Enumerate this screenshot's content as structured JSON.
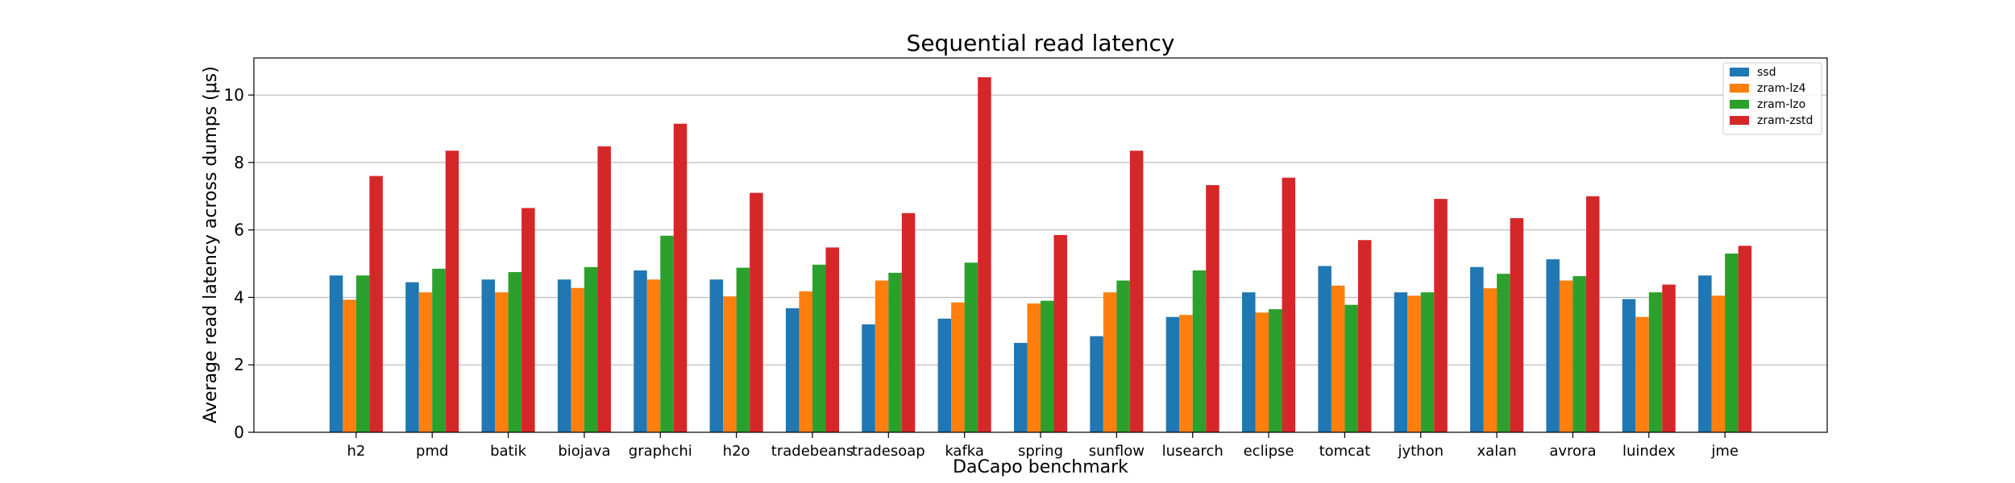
{
  "chart_data": {
    "type": "bar",
    "title": "Sequential read latency",
    "xlabel": "DaCapo benchmark",
    "ylabel": "Average read latency across dumps (μs)",
    "ylim": [
      0,
      11.1
    ],
    "yticks": [
      0,
      2,
      4,
      6,
      8,
      10
    ],
    "grid": "horizontal",
    "legend_position": "top-right",
    "categories": [
      "h2",
      "pmd",
      "batik",
      "biojava",
      "graphchi",
      "h2o",
      "tradebeans",
      "tradesoap",
      "kafka",
      "spring",
      "sunflow",
      "lusearch",
      "eclipse",
      "tomcat",
      "jython",
      "xalan",
      "avrora",
      "luindex",
      "jme"
    ],
    "series": [
      {
        "name": "ssd",
        "color": "#1f77b4",
        "values": [
          4.65,
          4.45,
          4.53,
          4.53,
          4.8,
          4.53,
          3.68,
          3.2,
          3.37,
          2.65,
          2.85,
          3.42,
          4.15,
          4.93,
          4.15,
          4.9,
          5.13,
          3.95,
          4.65
        ]
      },
      {
        "name": "zram-lz4",
        "color": "#ff7f0e",
        "values": [
          3.93,
          4.15,
          4.15,
          4.28,
          4.53,
          4.03,
          4.18,
          4.5,
          3.85,
          3.82,
          4.15,
          3.48,
          3.55,
          4.35,
          4.05,
          4.27,
          4.5,
          3.42,
          4.05
        ]
      },
      {
        "name": "zram-lzo",
        "color": "#2ca02c",
        "values": [
          4.65,
          4.85,
          4.75,
          4.9,
          5.83,
          4.88,
          4.97,
          4.73,
          5.03,
          3.9,
          4.5,
          4.8,
          3.65,
          3.78,
          4.15,
          4.7,
          4.63,
          4.15,
          5.3
        ]
      },
      {
        "name": "zram-zstd",
        "color": "#d62728",
        "values": [
          7.6,
          8.35,
          6.65,
          8.48,
          9.15,
          7.1,
          5.48,
          6.5,
          10.53,
          5.85,
          8.35,
          7.33,
          7.55,
          5.7,
          6.92,
          6.35,
          7.0,
          4.38,
          5.53
        ]
      }
    ]
  }
}
